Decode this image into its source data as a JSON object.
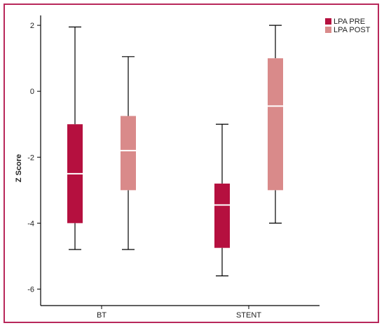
{
  "chart_data": {
    "type": "boxplot",
    "title": "",
    "xlabel": "",
    "ylabel": "Z Score",
    "ylim": [
      -6.5,
      2.3
    ],
    "yticks": [
      2,
      0,
      -2,
      -4,
      -6
    ],
    "ytick_labels": [
      "2",
      "0",
      "-2",
      "-4",
      "-6"
    ],
    "categories": [
      "BT",
      "STENT"
    ],
    "legend_position": "top-right outside",
    "series": [
      {
        "name": "LPA PRE",
        "color": "#b5103f",
        "boxes": [
          {
            "category": "BT",
            "min": -4.8,
            "q1": -4.0,
            "median": -2.5,
            "q3": -1.0,
            "max": 1.95
          },
          {
            "category": "STENT",
            "min": -5.6,
            "q1": -4.75,
            "median": -3.45,
            "q3": -2.8,
            "max": -1.0
          }
        ]
      },
      {
        "name": "LPA POST",
        "color": "#d98a8a",
        "boxes": [
          {
            "category": "BT",
            "min": -4.8,
            "q1": -3.0,
            "median": -1.8,
            "q3": -0.75,
            "max": 1.05
          },
          {
            "category": "STENT",
            "min": -4.0,
            "q1": -3.0,
            "median": -0.45,
            "q3": 1.0,
            "max": 2.0
          }
        ]
      }
    ]
  }
}
